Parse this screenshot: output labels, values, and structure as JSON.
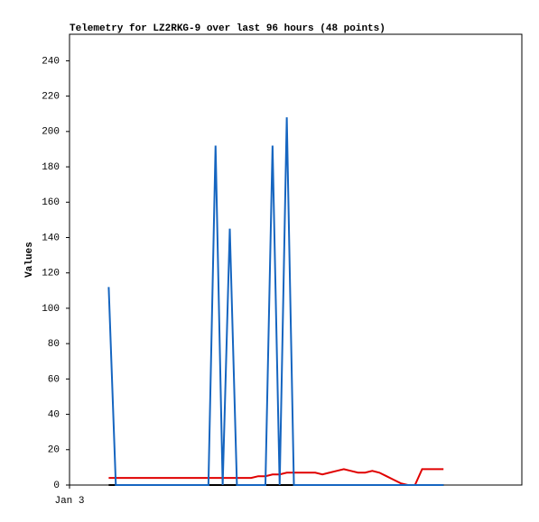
{
  "chart_data": {
    "type": "line",
    "title": "Telemetry for LZ2RKG-9 over last 96 hours (48 points)",
    "y_label": "Values",
    "x": [
      11,
      13,
      15,
      17,
      19,
      21,
      23,
      25,
      27,
      29,
      31,
      33,
      35,
      37,
      39,
      41,
      43,
      45,
      47,
      49,
      51,
      53,
      55,
      57,
      59,
      61,
      63,
      65,
      67,
      69,
      71,
      73,
      75,
      77,
      79,
      81,
      83,
      85,
      87,
      89,
      91,
      93,
      95,
      97,
      99,
      101,
      103,
      105
    ],
    "xlim": [
      0,
      127
    ],
    "xticks": [
      {
        "value": 0,
        "label": "Jan 3"
      }
    ],
    "ylim": [
      0,
      255
    ],
    "yticks": [
      0,
      20,
      40,
      60,
      80,
      100,
      120,
      140,
      160,
      180,
      200,
      220,
      240
    ],
    "series": [
      {
        "color": "#000000",
        "values": [
          0,
          0,
          0,
          0,
          0,
          0,
          0,
          0,
          0,
          0,
          0,
          0,
          0,
          0,
          0,
          0,
          0,
          0,
          0,
          0,
          0,
          0,
          0,
          0,
          0,
          0,
          0,
          0,
          0,
          0,
          0,
          0,
          0,
          0,
          0,
          0,
          0,
          0,
          0,
          0,
          0,
          0,
          0,
          0,
          0,
          0,
          0,
          0
        ]
      },
      {
        "color": "#e00000",
        "values": [
          4,
          4,
          4,
          4,
          4,
          4,
          4,
          4,
          4,
          4,
          4,
          4,
          4,
          4,
          4,
          4,
          4,
          4,
          4,
          4,
          4,
          5,
          5,
          6,
          6,
          7,
          7,
          7,
          7,
          7,
          6,
          7,
          8,
          9,
          8,
          7,
          7,
          8,
          7,
          5,
          3,
          1,
          0,
          0,
          9,
          9,
          9,
          9
        ]
      },
      {
        "color": "#1565c0",
        "values": [
          112,
          0,
          0,
          0,
          0,
          0,
          0,
          0,
          0,
          0,
          0,
          0,
          0,
          0,
          0,
          192,
          0,
          145,
          0,
          0,
          0,
          0,
          0,
          192,
          0,
          208,
          0,
          0,
          0,
          0,
          0,
          0,
          0,
          0,
          0,
          0,
          0,
          0,
          0,
          0,
          0,
          0,
          0,
          0,
          0,
          0,
          0,
          0
        ]
      }
    ]
  }
}
